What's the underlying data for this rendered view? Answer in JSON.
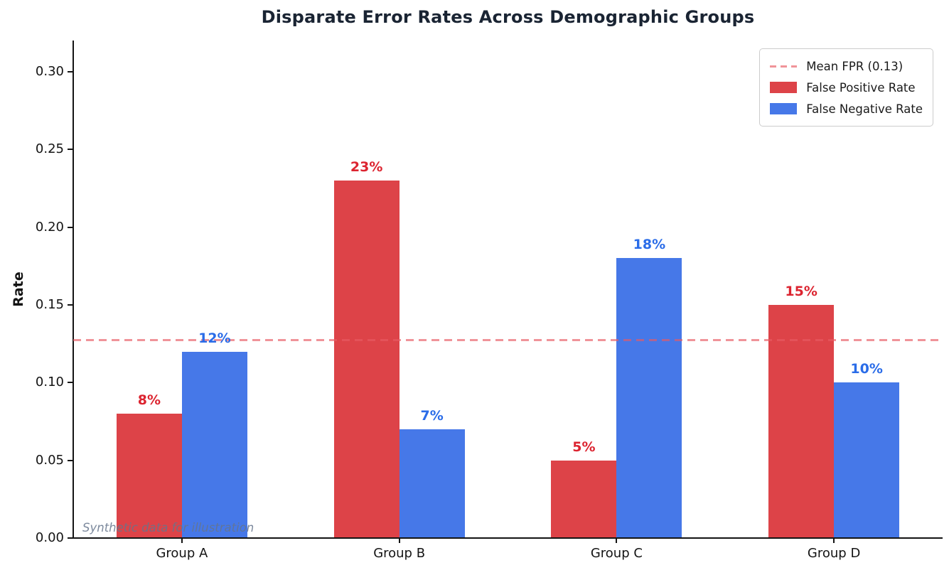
{
  "chart_data": {
    "type": "bar",
    "title": "Disparate Error Rates Across Demographic Groups",
    "ylabel": "Rate",
    "xlabel": "",
    "categories": [
      "Group A",
      "Group B",
      "Group C",
      "Group D"
    ],
    "series": [
      {
        "name": "False Positive Rate",
        "color": "#dd4348",
        "label_color": "#dc2430",
        "values": [
          0.08,
          0.23,
          0.05,
          0.15
        ],
        "bar_labels": [
          "8%",
          "23%",
          "5%",
          "15%"
        ]
      },
      {
        "name": "False Negative Rate",
        "color": "#4678e8",
        "label_color": "#2a6ce8",
        "values": [
          0.12,
          0.07,
          0.18,
          0.1
        ],
        "bar_labels": [
          "12%",
          "7%",
          "18%",
          "10%"
        ]
      }
    ],
    "reference_line": {
      "label": "Mean FPR (0.13)",
      "value": 0.1275,
      "color": "rgba(232,90,98,0.65)"
    },
    "yticks": [
      "0.00",
      "0.05",
      "0.10",
      "0.15",
      "0.20",
      "0.25",
      "0.30"
    ],
    "ylim": [
      0,
      0.32
    ],
    "legend_position": "upper right",
    "grid": false,
    "annotation": "Synthetic data for illustration",
    "colors": {
      "title": "#1a2433",
      "axis": "#141414",
      "annotation": "#66758c",
      "legend_border": "#cccccc",
      "background": "#ffffff"
    }
  }
}
